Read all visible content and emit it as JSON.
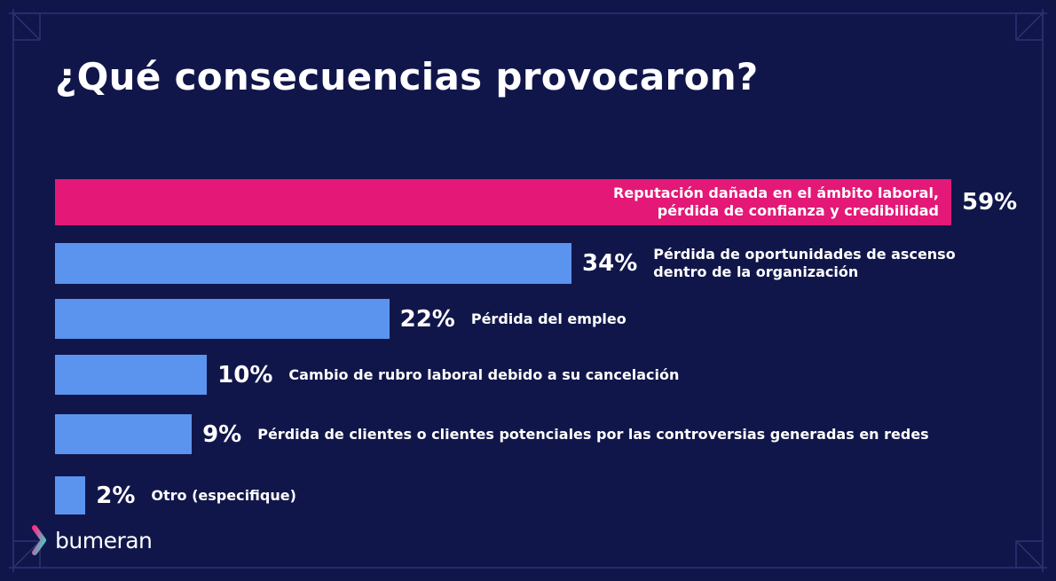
{
  "title": "¿Qué consecuencias provocaron?",
  "brand": "bumeran",
  "colors": {
    "background": "#11164a",
    "highlight_bar": "#e31877",
    "bar": "#5b94ee",
    "frame_line": "#2b3272"
  },
  "chart_data": {
    "type": "bar",
    "orientation": "horizontal",
    "xlim": [
      0,
      62
    ],
    "categories": [
      "Reputación dañada en el ámbito laboral,\npérdida de confianza y credibilidad",
      "Pérdida de oportunidades de ascenso\ndentro de la organización",
      "Pérdida del empleo",
      "Cambio de rubro laboral debido a su cancelación",
      "Pérdida de clientes o clientes potenciales por las controversias generadas en redes",
      "Otro (especifique)"
    ],
    "values": [
      59,
      34,
      22,
      10,
      9,
      2
    ],
    "value_labels": [
      "59%",
      "34%",
      "22%",
      "10%",
      "9%",
      "2%"
    ],
    "highlighted_index": 0
  }
}
